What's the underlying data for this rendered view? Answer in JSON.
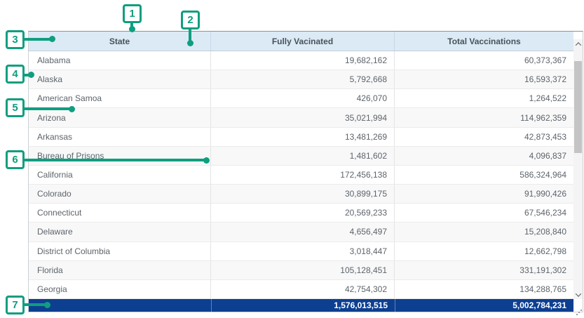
{
  "table": {
    "columns": [
      {
        "label": "State"
      },
      {
        "label": "Fully Vacinated"
      },
      {
        "label": "Total Vaccinations"
      }
    ],
    "rows": [
      [
        "Alabama",
        "19,682,162",
        "60,373,367"
      ],
      [
        "Alaska",
        "5,792,668",
        "16,593,372"
      ],
      [
        "American Samoa",
        "426,070",
        "1,264,522"
      ],
      [
        "Arizona",
        "35,021,994",
        "114,962,359"
      ],
      [
        "Arkansas",
        "13,481,269",
        "42,873,453"
      ],
      [
        "Bureau of Prisons",
        "1,481,602",
        "4,096,837"
      ],
      [
        "California",
        "172,456,138",
        "586,324,964"
      ],
      [
        "Colorado",
        "30,899,175",
        "91,990,426"
      ],
      [
        "Connecticut",
        "20,569,233",
        "67,546,234"
      ],
      [
        "Delaware",
        "4,656,497",
        "15,208,840"
      ],
      [
        "District of Columbia",
        "3,018,447",
        "12,662,798"
      ],
      [
        "Florida",
        "105,128,451",
        "331,191,302"
      ],
      [
        "Georgia",
        "42,754,302",
        "134,288,765"
      ]
    ],
    "summary": {
      "state": "",
      "fully_vaccinated": "1,576,013,515",
      "total_vaccinations": "5,002,784,231"
    }
  },
  "callouts": [
    {
      "label": "1"
    },
    {
      "label": "2"
    },
    {
      "label": "3"
    },
    {
      "label": "4"
    },
    {
      "label": "5"
    },
    {
      "label": "6"
    },
    {
      "label": "7"
    }
  ],
  "colors": {
    "callout_green": "#0F9E80",
    "summary_row_blue": "#0D3F91",
    "header_blue": "#DCEAF6"
  }
}
